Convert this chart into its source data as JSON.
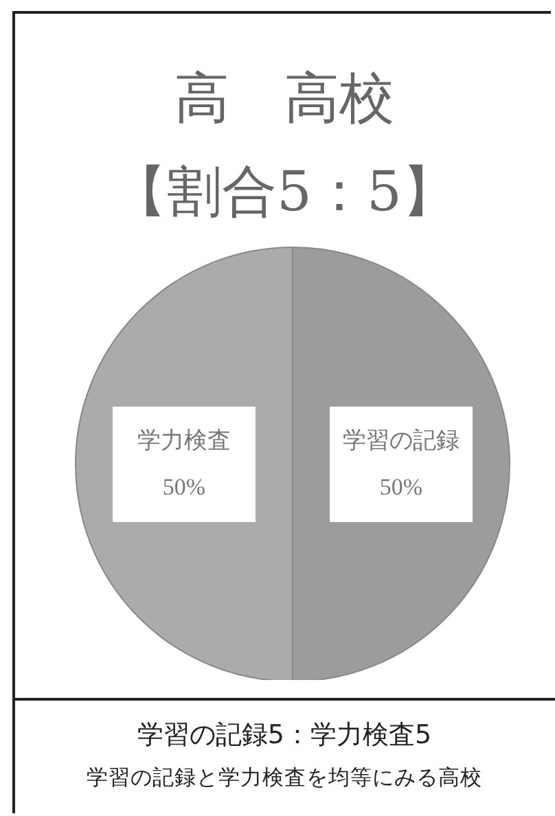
{
  "chart_data": {
    "type": "pie",
    "title": "高　高校",
    "subtitle": "【割合5：5】",
    "categories": [
      "学習の記録",
      "学力検査"
    ],
    "values": [
      50,
      50
    ],
    "colors": [
      "#9c9c9c",
      "#ababab"
    ],
    "value_labels": [
      "50%",
      "50%"
    ],
    "annotations": [
      "学習の記録5：学力検査5",
      "学習の記録と学力検査を均等にみる高校"
    ]
  }
}
